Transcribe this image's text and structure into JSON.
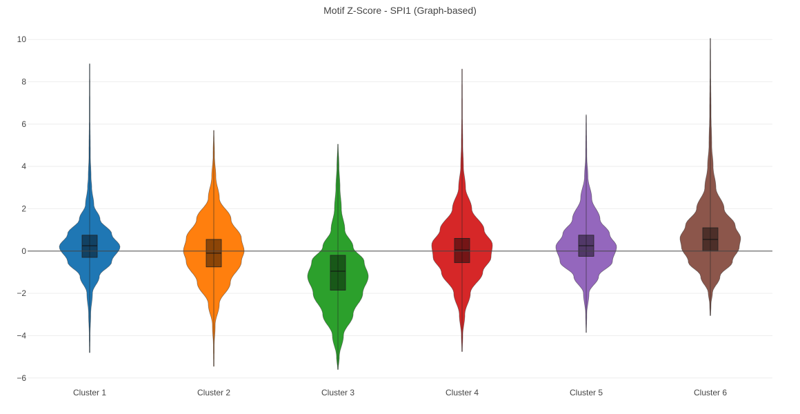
{
  "chart_data": {
    "type": "violin",
    "title": "Motif Z-Score - SPI1 (Graph-based)",
    "xlabel": "",
    "ylabel": "",
    "ylim": [
      -6.3,
      10.3
    ],
    "yticks": [
      -6,
      -4,
      -2,
      0,
      2,
      4,
      6,
      8,
      10
    ],
    "grid": true,
    "legend": "none",
    "categories": [
      "Cluster 1",
      "Cluster 2",
      "Cluster 3",
      "Cluster 4",
      "Cluster 5",
      "Cluster 6"
    ],
    "series": [
      {
        "category": "Cluster 1",
        "color": "#1f77b4",
        "min": -4.8,
        "q1": -0.3,
        "median": 0.25,
        "q3": 0.75,
        "max": 8.85,
        "profile": [
          [
            -4.8,
            0.4
          ],
          [
            -4.0,
            0.6
          ],
          [
            -3.0,
            1.5
          ],
          [
            -2.0,
            4
          ],
          [
            -1.2,
            14
          ],
          [
            -0.5,
            32
          ],
          [
            0.2,
            44
          ],
          [
            0.8,
            32
          ],
          [
            1.5,
            15
          ],
          [
            2.2,
            6
          ],
          [
            3.0,
            3
          ],
          [
            3.5,
            2
          ],
          [
            4.5,
            1
          ],
          [
            6.5,
            0.5
          ],
          [
            8.85,
            0.3
          ]
        ]
      },
      {
        "category": "Cluster 2",
        "color": "#ff7f0e",
        "min": -5.45,
        "q1": -0.75,
        "median": -0.1,
        "q3": 0.55,
        "max": 5.7,
        "profile": [
          [
            -5.45,
            0.4
          ],
          [
            -4.5,
            0.6
          ],
          [
            -3.5,
            2
          ],
          [
            -2.5,
            8
          ],
          [
            -1.5,
            24
          ],
          [
            -0.5,
            40
          ],
          [
            0,
            44
          ],
          [
            0.6,
            40
          ],
          [
            1.5,
            25
          ],
          [
            2.5,
            8
          ],
          [
            3.5,
            3
          ],
          [
            4.5,
            1
          ],
          [
            5.7,
            0.3
          ]
        ]
      },
      {
        "category": "Cluster 3",
        "color": "#2ca02c",
        "min": -5.6,
        "q1": -1.85,
        "median": -0.95,
        "q3": -0.2,
        "max": 5.05,
        "profile": [
          [
            -5.6,
            0.4
          ],
          [
            -5.0,
            2
          ],
          [
            -4.0,
            8
          ],
          [
            -3.0,
            22
          ],
          [
            -2.0,
            36
          ],
          [
            -1.2,
            44
          ],
          [
            -0.5,
            38
          ],
          [
            0.2,
            22
          ],
          [
            1.0,
            10
          ],
          [
            2.0,
            5
          ],
          [
            3.0,
            3
          ],
          [
            4.0,
            1.5
          ],
          [
            5.05,
            0.3
          ]
        ]
      },
      {
        "category": "Cluster 4",
        "color": "#d62728",
        "min": -4.75,
        "q1": -0.55,
        "median": 0.05,
        "q3": 0.6,
        "max": 8.6,
        "profile": [
          [
            -4.75,
            0.4
          ],
          [
            -4.0,
            1
          ],
          [
            -3.0,
            4
          ],
          [
            -2.0,
            12
          ],
          [
            -1.0,
            30
          ],
          [
            -0.3,
            42
          ],
          [
            0.3,
            44
          ],
          [
            1.0,
            32
          ],
          [
            2.0,
            14
          ],
          [
            3.0,
            5
          ],
          [
            4.0,
            2
          ],
          [
            5.0,
            1
          ],
          [
            6.5,
            0.5
          ],
          [
            8.6,
            0.3
          ]
        ]
      },
      {
        "category": "Cluster 5",
        "color": "#9467bd",
        "min": -3.85,
        "q1": -0.25,
        "median": 0.25,
        "q3": 0.75,
        "max": 6.45,
        "profile": [
          [
            -3.85,
            0.3
          ],
          [
            -3.0,
            0.8
          ],
          [
            -2.0,
            4
          ],
          [
            -1.2,
            18
          ],
          [
            -0.5,
            38
          ],
          [
            0.2,
            44
          ],
          [
            0.8,
            34
          ],
          [
            1.5,
            20
          ],
          [
            2.5,
            8
          ],
          [
            3.5,
            2.5
          ],
          [
            4.5,
            0.8
          ],
          [
            6.45,
            0.3
          ]
        ]
      },
      {
        "category": "Cluster 6",
        "color": "#8c564b",
        "min": -3.05,
        "q1": 0.0,
        "median": 0.55,
        "q3": 1.1,
        "max": 10.05,
        "profile": [
          [
            -3.05,
            0.4
          ],
          [
            -2.5,
            1
          ],
          [
            -2.0,
            3
          ],
          [
            -1.2,
            14
          ],
          [
            -0.5,
            32
          ],
          [
            0.2,
            42
          ],
          [
            0.6,
            44
          ],
          [
            1.2,
            36
          ],
          [
            2.0,
            20
          ],
          [
            3.0,
            8
          ],
          [
            4.0,
            4
          ],
          [
            5.0,
            2
          ],
          [
            6.5,
            1
          ],
          [
            8.5,
            0.5
          ],
          [
            10.05,
            0.3
          ]
        ]
      }
    ]
  }
}
